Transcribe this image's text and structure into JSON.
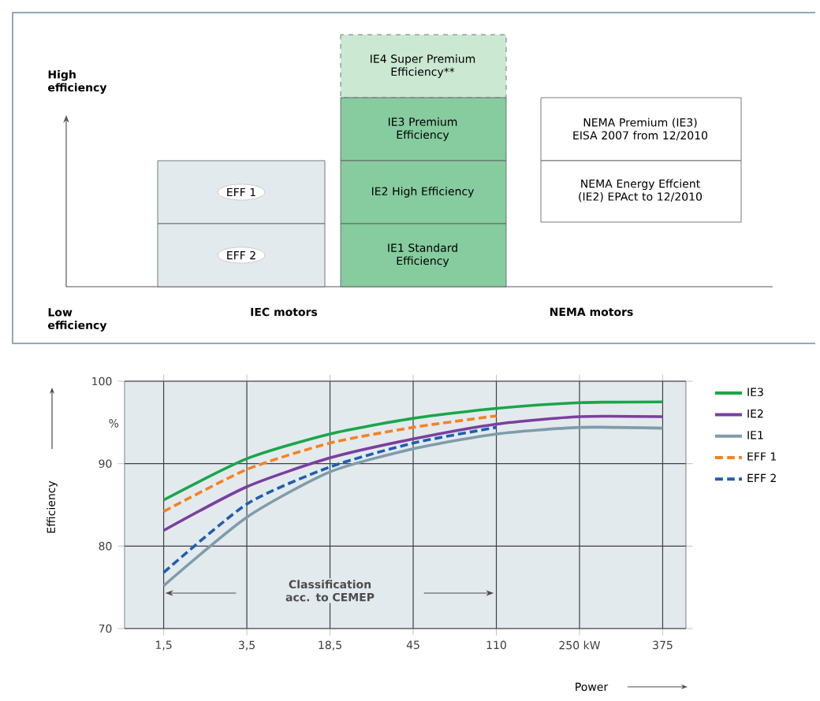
{
  "chart_data": [
    {
      "type": "other",
      "annotations": [
        "High efficiency",
        "Low efficiency",
        "IEC motors",
        "NEMA motors",
        "EFF 1",
        "EFF 2",
        "IE4 Super Premium Efficiency**",
        "IE3 Premium Efficiency",
        "IE2 High Efficiency",
        "IE1 Standard Efficiency",
        "NEMA Premium (IE3) EISA 2007 from 12/2010",
        "NEMA Energy Effcient (IE2) EPAct to 12/2010"
      ]
    },
    {
      "type": "line",
      "xlabel": "Power",
      "ylabel": "Efficiency",
      "categories": [
        "1,5",
        "3,5",
        "18,5",
        "45",
        "110",
        "250 kW",
        "375"
      ],
      "series": [
        {
          "name": "IE3",
          "color": "#1aa64a",
          "line_style": "solid",
          "values": [
            85.6,
            90.6,
            93.6,
            95.5,
            96.7,
            97.4,
            97.5
          ]
        },
        {
          "name": "IE2",
          "color": "#7b3f9e",
          "line_style": "solid",
          "values": [
            81.9,
            87.2,
            90.7,
            93.0,
            94.8,
            95.7,
            95.7
          ]
        },
        {
          "name": "IE1",
          "color": "#7f9caa",
          "line_style": "solid",
          "values": [
            75.2,
            83.5,
            89.0,
            91.8,
            93.6,
            94.4,
            94.3
          ]
        },
        {
          "name": "EFF 1",
          "color": "#f58220",
          "line_style": "dashed",
          "values": [
            84.2,
            89.3,
            92.5,
            94.4,
            95.8,
            null,
            null
          ]
        },
        {
          "name": "EFF 2",
          "color": "#1f5fae",
          "line_style": "dashed",
          "values": [
            76.8,
            85.1,
            89.6,
            92.5,
            94.4,
            null,
            null
          ]
        }
      ],
      "ylim": [
        70,
        100
      ],
      "yticks": [
        70,
        80,
        90,
        100
      ],
      "grid": true,
      "legend": "right",
      "marker": "none",
      "annotations": [
        "Classification acc. to CEMEP",
        "%"
      ]
    }
  ]
}
